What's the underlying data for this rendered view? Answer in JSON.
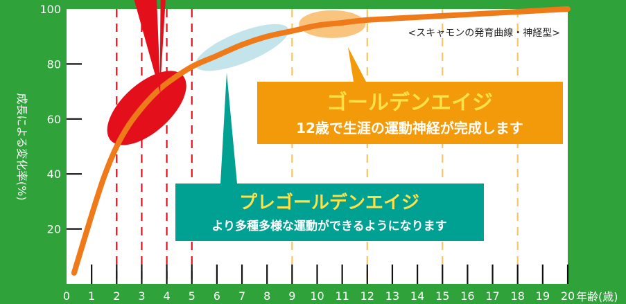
{
  "chart_data": {
    "type": "line",
    "subtitle": "<スキャモンの発育曲線・神経型>",
    "ylabel": "成長による変化率(%)",
    "xunit": "年齢(歳)",
    "xlim": [
      0,
      20
    ],
    "ylim": [
      0,
      100
    ],
    "yticks": [
      "20",
      "40",
      "60",
      "80",
      "100"
    ],
    "xticks": [
      "0",
      "1",
      "2",
      "3",
      "4",
      "5",
      "6",
      "7",
      "8",
      "9",
      "10",
      "11",
      "12",
      "13",
      "14",
      "15",
      "16",
      "17",
      "18",
      "19",
      "20"
    ],
    "series": [
      {
        "x": [
          0.3,
          1,
          1.5,
          2,
          2.5,
          3,
          3.5,
          4,
          5,
          6,
          7,
          8,
          9,
          10,
          11,
          12,
          14,
          16,
          18,
          20
        ],
        "y": [
          4,
          25,
          39,
          50,
          58,
          64,
          69,
          73,
          79,
          83,
          87,
          90,
          92,
          94,
          95,
          96,
          97,
          98,
          99,
          100
        ]
      }
    ],
    "callouts": [
      {
        "title": "ゴールデンエイジ",
        "subtitle": "12歳で生涯の運動神経が完成します"
      },
      {
        "title": "プレゴールデンエイジ",
        "subtitle": "より多種多様な運動ができるようになります"
      }
    ],
    "colors": {
      "background": "#2fa23a",
      "plot": "#ffffff",
      "curve": "#ef7a1a",
      "red": "#e3101c",
      "golden_box": "#f39a0a",
      "pre_box": "#00a193",
      "grid_dash_orange": "#f5c56a",
      "highlight_blue": "#b9dfe6",
      "highlight_orange": "#f9c47d"
    }
  }
}
